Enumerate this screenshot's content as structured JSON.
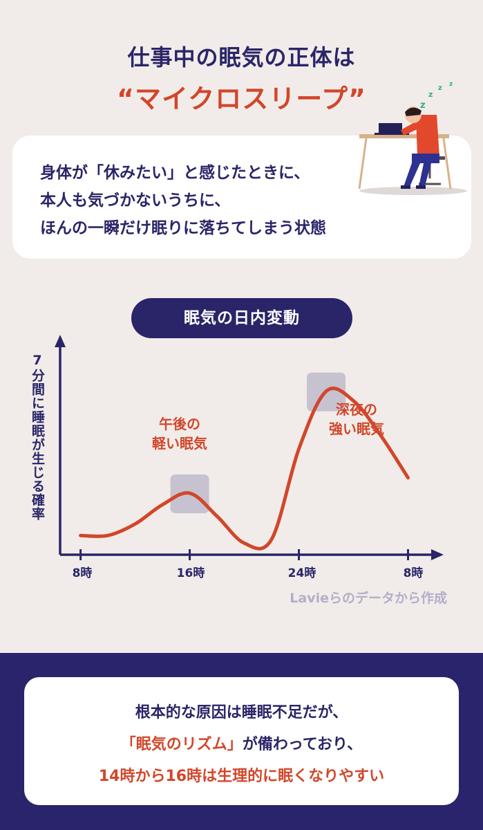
{
  "header": {
    "title_line1": "仕事中の眠気の正体は",
    "title_line2": "“マイクロスリープ”"
  },
  "definition": {
    "lines": [
      "身体が「休みたい」と感じたときに、",
      "本人も気づかないうちに、",
      "ほんの一瞬だけ眠りに落ちてしまう状態"
    ]
  },
  "illustration": {
    "icon": "sleeping-worker-at-desk-icon",
    "zzz": "z z z z"
  },
  "chart": {
    "title": "眠気の日内変動",
    "ylabel": "7分間に睡眠が生じる確率",
    "annotations": {
      "afternoon": [
        "午後の",
        "軽い眠気"
      ],
      "night": [
        "深夜の",
        "強い眠気"
      ]
    },
    "source": "Lavieらのデータから作成"
  },
  "chart_data": {
    "type": "line",
    "x": [
      8,
      10,
      12,
      14,
      16,
      18,
      20,
      22,
      24,
      26,
      28,
      30,
      32
    ],
    "series": [
      {
        "values": [
          0.1,
          0.1,
          0.16,
          0.26,
          0.32,
          0.2,
          0.06,
          0.08,
          0.55,
          0.85,
          0.8,
          0.62,
          0.4
        ]
      }
    ],
    "tick_labels": [
      "8時",
      "16時",
      "24時",
      "8時"
    ],
    "tick_x": [
      8,
      16,
      24,
      32
    ],
    "xlim": [
      6.5,
      34
    ],
    "ylim": [
      0,
      1.05
    ],
    "highlight_regions": [
      {
        "label": "午後の軽い眠気"
      },
      {
        "label": "深夜の強い眠気"
      }
    ],
    "line_color": "#d2462a",
    "axis_color": "#2a2568",
    "highlight_color": "#c6c2cf"
  },
  "summary": {
    "line1": "根本的な原因は睡眠不足だが、",
    "line2_highlight": "「眠気のリズム」",
    "line2_rest": "が備わっており、",
    "line3": "14時から16時は生理的に眠くなりやすい"
  },
  "colors": {
    "navy": "#2a2568",
    "red": "#d2462a",
    "background": "#f1ece9"
  }
}
